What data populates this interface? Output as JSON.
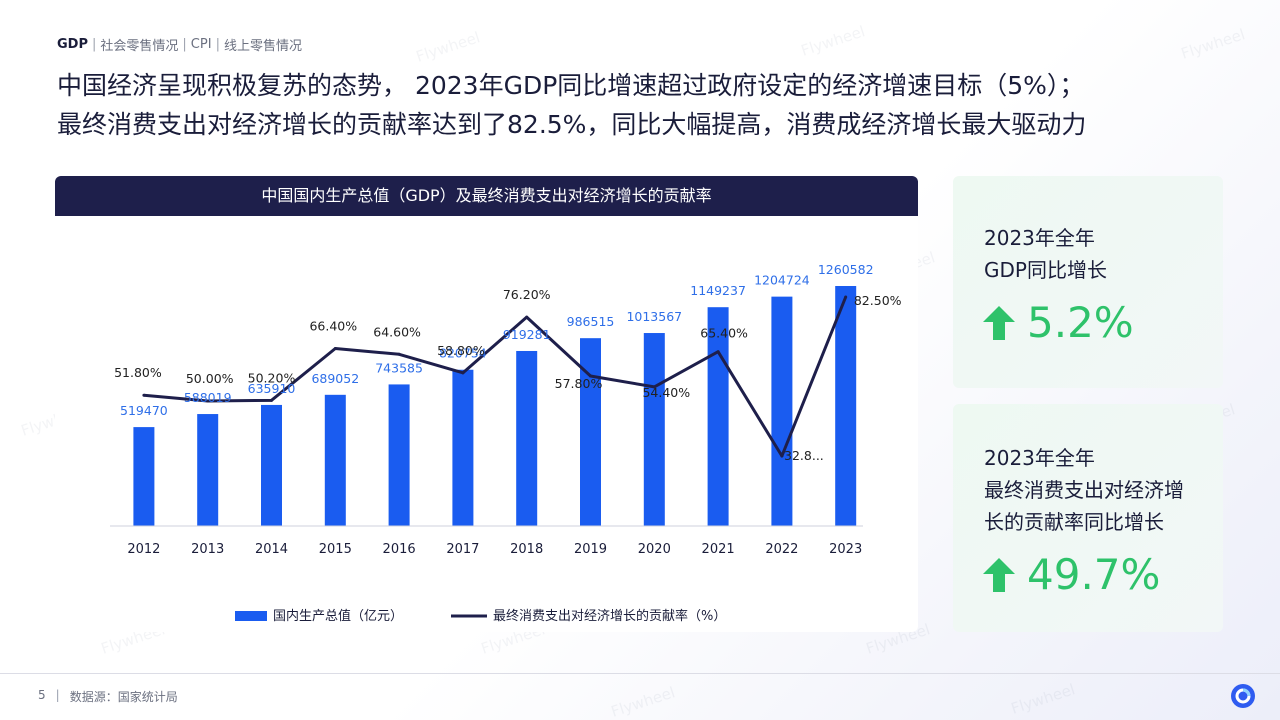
{
  "breadcrumb": [
    "GDP",
    "社会零售情况",
    "CPI",
    "线上零售情况"
  ],
  "headline": {
    "line1": "中国经济呈现积极复苏的态势， 2023年GDP同比增速超过政府设定的经济增速目标（5%）；",
    "line2": "最终消费支出对经济增长的贡献率达到了82.5%，同比大幅提高，消费成经济增长最大驱动力"
  },
  "chart_data": {
    "type": "bar",
    "title": "中国国内生产总值（GDP）及最终消费支出对经济增长的贡献率",
    "categories": [
      "2012",
      "2013",
      "2014",
      "2015",
      "2016",
      "2017",
      "2018",
      "2019",
      "2020",
      "2021",
      "2022",
      "2023"
    ],
    "series": [
      {
        "name": "国内生产总值（亿元）",
        "type": "bar",
        "values": [
          519470,
          588019,
          635910,
          689052,
          743585,
          820754,
          919281,
          986515,
          1013567,
          1149237,
          1204724,
          1260582
        ],
        "labels": [
          "519470",
          "588019",
          "635910",
          "689052",
          "743585",
          "820754",
          "919281",
          "986515",
          "1013567",
          "1149237",
          "1204724",
          "1260582"
        ]
      },
      {
        "name": "最终消费支出对经济增长的贡献率（%）",
        "type": "line",
        "values": [
          51.8,
          50.0,
          50.2,
          66.4,
          64.6,
          58.8,
          76.2,
          57.8,
          54.4,
          65.4,
          32.8,
          82.5
        ],
        "labels": [
          "51.80%",
          "50.00%",
          "50.20%",
          "66.40%",
          "64.60%",
          "58.80%",
          "76.20%",
          "57.80%",
          "54.40%",
          "65.40%",
          "32.8...",
          "82.50%"
        ]
      }
    ],
    "ylim_bar": [
      0,
      1300000
    ],
    "ylim_line": [
      0,
      90
    ],
    "legend_position": "bottom",
    "grid": false,
    "colors": {
      "bar": "#1a5cf0",
      "line": "#1e1f4b",
      "bar_label": "#2f6fe8",
      "line_label": "#222222"
    }
  },
  "stats": [
    {
      "label_lines": [
        "2023年全年",
        "GDP同比增长"
      ],
      "value": "5.2%",
      "icon": "up-arrow-icon"
    },
    {
      "label_lines": [
        "2023年全年",
        "最终消费支出对经济增",
        "长的贡献率同比增长"
      ],
      "value": "49.7%",
      "icon": "up-arrow-icon"
    }
  ],
  "footer": {
    "page_number": "5",
    "source": "数据源：国家统计局"
  },
  "watermark": "Flywheel",
  "accent_color": "#2ec26a"
}
